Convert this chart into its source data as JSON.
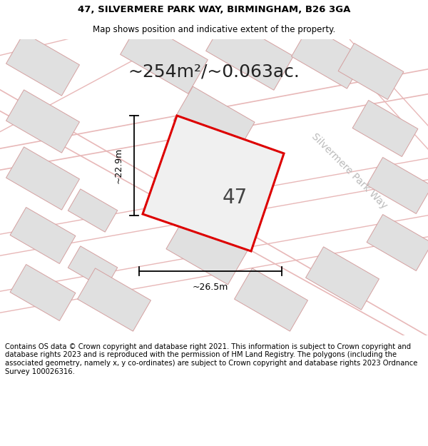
{
  "title_line1": "47, SILVERMERE PARK WAY, BIRMINGHAM, B26 3GA",
  "title_line2": "Map shows position and indicative extent of the property.",
  "area_label": "~254m²/~0.063ac.",
  "property_number": "47",
  "dim_width": "~26.5m",
  "dim_height": "~22.9m",
  "street_label": "Silvermere Park Way",
  "footer_text": "Contains OS data © Crown copyright and database right 2021. This information is subject to Crown copyright and database rights 2023 and is reproduced with the permission of HM Land Registry. The polygons (including the associated geometry, namely x, y co-ordinates) are subject to Crown copyright and database rights 2023 Ordnance Survey 100026316.",
  "map_bg": "#ffffff",
  "building_fill": "#e0e0e0",
  "building_edge": "#d4a0a0",
  "road_color": "#e8b8b8",
  "plot_fill": "#f0f0f0",
  "plot_edge": "#dd0000",
  "title_fontsize": 9.5,
  "subtitle_fontsize": 8.5,
  "area_fontsize": 18,
  "number_fontsize": 20,
  "dim_fontsize": 9,
  "street_fontsize": 10,
  "footer_fontsize": 7.2
}
